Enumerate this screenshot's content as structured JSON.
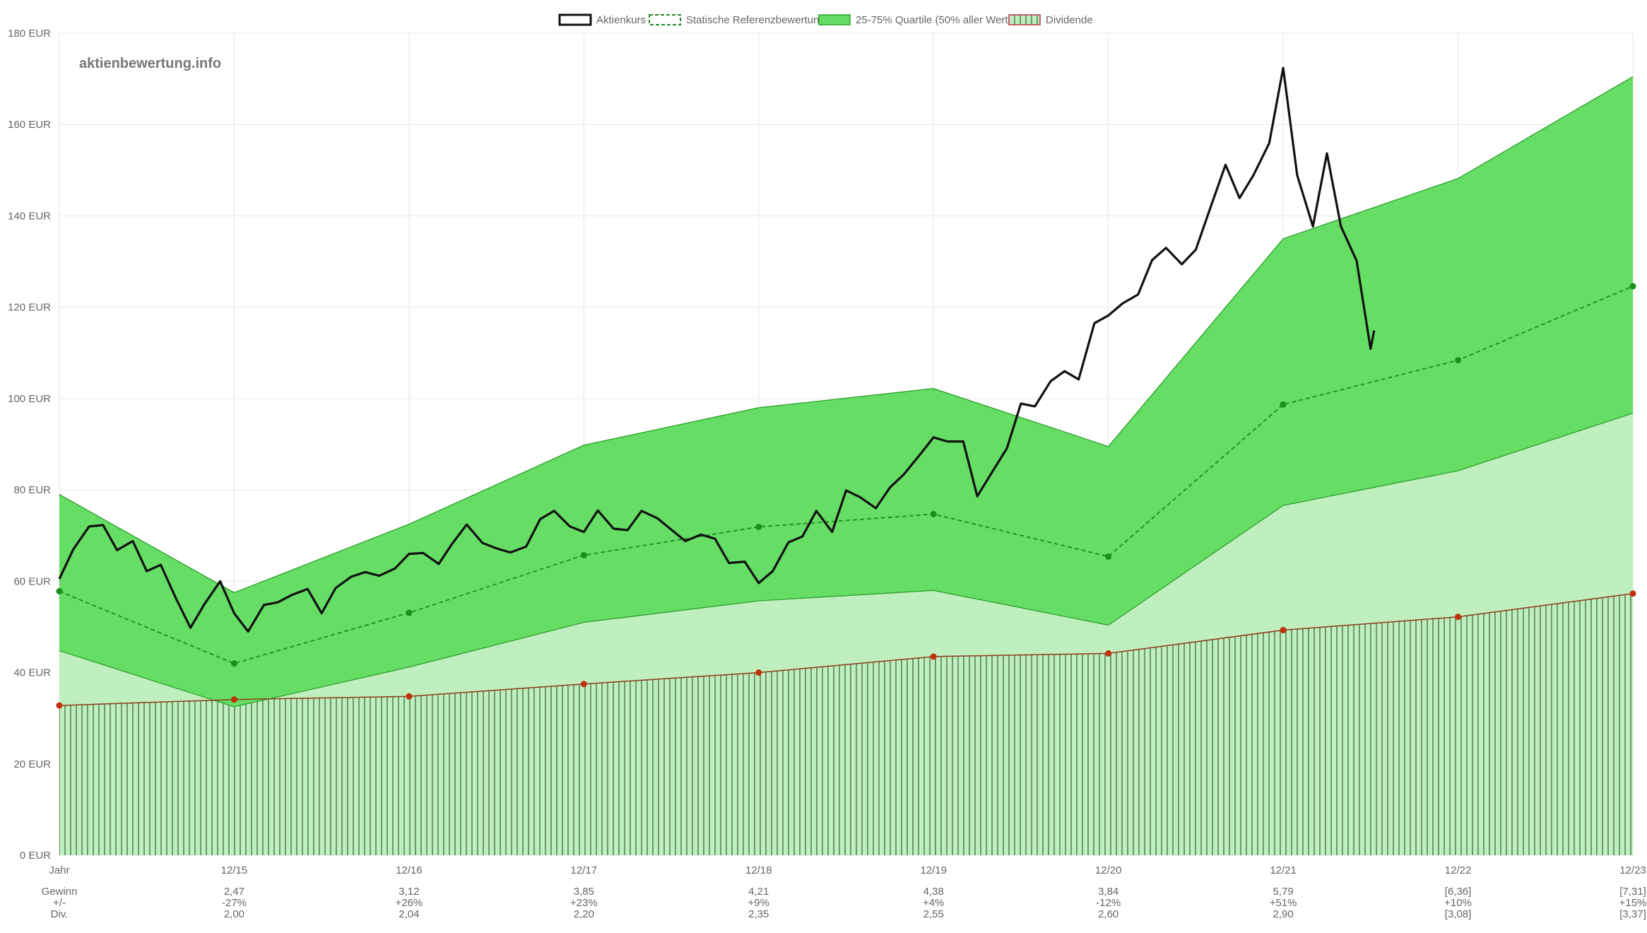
{
  "watermark": "aktienbewertung.info",
  "legend": {
    "price": "Aktienkurs",
    "reference": "Statische Referenzbewertung",
    "quartile": "25-75% Quartile (50% aller Werte)",
    "dividend": "Dividende"
  },
  "colors": {
    "price": "#111111",
    "reference": "#1e8a1e",
    "reference_point": "#1a8f1a",
    "quartile_fill": "#66de66",
    "quartile_stroke": "#2ca02c",
    "lower_fill": "#c0efbf",
    "dividend_stroke": "#8b3a1a",
    "dividend_point": "#c0300a",
    "dividend_hatch": "#3f6b3f",
    "grid": "#e6e6e6"
  },
  "table": {
    "header": "Jahr",
    "row_labels": [
      "Gewinn",
      "+/-",
      "Div."
    ],
    "columns": [
      {
        "year": "12/15",
        "gewinn": "2,47",
        "change": "-27%",
        "div": "2,00"
      },
      {
        "year": "12/16",
        "gewinn": "3,12",
        "change": "+26%",
        "div": "2,04"
      },
      {
        "year": "12/17",
        "gewinn": "3,85",
        "change": "+23%",
        "div": "2,20"
      },
      {
        "year": "12/18",
        "gewinn": "4,21",
        "change": "+9%",
        "div": "2,35"
      },
      {
        "year": "12/19",
        "gewinn": "4,38",
        "change": "+4%",
        "div": "2,55"
      },
      {
        "year": "12/20",
        "gewinn": "3,84",
        "change": "-12%",
        "div": "2,60"
      },
      {
        "year": "12/21",
        "gewinn": "5,79",
        "change": "+51%",
        "div": "2,90"
      },
      {
        "year": "12/22",
        "gewinn": "[6,36]",
        "change": "+10%",
        "div": "[3,08]"
      },
      {
        "year": "12/23",
        "gewinn": "[7,31]",
        "change": "+15%",
        "div": "[3,37]"
      }
    ]
  },
  "chart_data": {
    "type": "line",
    "title": "",
    "xlabel": "",
    "ylabel": "",
    "y_unit": "EUR",
    "ylim": [
      0,
      180
    ],
    "yticks": [
      0,
      20,
      40,
      60,
      80,
      100,
      120,
      140,
      160,
      180
    ],
    "xlim": [
      2014.0,
      2023.0
    ],
    "x_ticks": [
      2014,
      2015,
      2016,
      2017,
      2018,
      2019,
      2020,
      2021,
      2022,
      2023
    ],
    "x_tick_labels": [
      "Jahr",
      "12/15",
      "12/16",
      "12/17",
      "12/18",
      "12/19",
      "12/20",
      "12/21",
      "12/22",
      "12/23"
    ],
    "grid": true,
    "legend_position": "top-center",
    "series": [
      {
        "name": "Aktienkurs",
        "x": [
          2014.0,
          2014.08,
          2014.17,
          2014.25,
          2014.33,
          2014.42,
          2014.5,
          2014.58,
          2014.67,
          2014.75,
          2014.83,
          2014.92,
          2015.0,
          2015.08,
          2015.17,
          2015.25,
          2015.33,
          2015.42,
          2015.5,
          2015.58,
          2015.67,
          2015.75,
          2015.83,
          2015.92,
          2016.0,
          2016.08,
          2016.17,
          2016.25,
          2016.33,
          2016.42,
          2016.5,
          2016.58,
          2016.67,
          2016.75,
          2016.83,
          2016.92,
          2017.0,
          2017.08,
          2017.17,
          2017.25,
          2017.33,
          2017.42,
          2017.5,
          2017.58,
          2017.67,
          2017.75,
          2017.83,
          2017.92,
          2018.0,
          2018.08,
          2018.17,
          2018.25,
          2018.33,
          2018.42,
          2018.5,
          2018.58,
          2018.67,
          2018.75,
          2018.83,
          2018.92,
          2019.0,
          2019.08,
          2019.17,
          2019.25,
          2019.33,
          2019.42,
          2019.5,
          2019.58,
          2019.67,
          2019.75,
          2019.83,
          2019.92,
          2020.0,
          2020.08,
          2020.17,
          2020.25,
          2020.33,
          2020.42,
          2020.5,
          2020.58,
          2020.67,
          2020.75,
          2020.83,
          2020.92,
          2021.0,
          2021.08,
          2021.17,
          2021.25,
          2021.33,
          2021.42,
          2021.5,
          2021.52
        ],
        "y": [
          60.5,
          67.0,
          72.0,
          72.3,
          66.8,
          68.8,
          62.2,
          63.6,
          56.0,
          49.8,
          55.0,
          60.0,
          53.0,
          49.0,
          54.8,
          55.4,
          57.0,
          58.3,
          53.0,
          58.5,
          61.0,
          62.0,
          61.2,
          62.8,
          66.0,
          66.2,
          63.8,
          68.4,
          72.4,
          68.4,
          67.2,
          66.3,
          67.6,
          73.6,
          75.4,
          72.0,
          70.8,
          75.5,
          71.5,
          71.2,
          75.4,
          73.8,
          71.3,
          68.8,
          70.2,
          69.3,
          64.0,
          64.3,
          59.6,
          62.2,
          68.5,
          69.8,
          75.4,
          70.8,
          79.9,
          78.4,
          76.0,
          80.5,
          83.4,
          87.6,
          91.5,
          90.6,
          90.6,
          78.6,
          83.6,
          89.1,
          98.9,
          98.3,
          103.8,
          106.0,
          104.2,
          116.5,
          118.2,
          120.8,
          122.8,
          130.3,
          133.0,
          129.4,
          132.6,
          141.4,
          151.2,
          143.9,
          148.9,
          155.9,
          172.4,
          148.9,
          137.7,
          153.7,
          137.7,
          130.2,
          110.9,
          114.9
        ]
      },
      {
        "name": "Statische Referenzbewertung",
        "x": [
          2014,
          2015,
          2016,
          2017,
          2018,
          2019,
          2020,
          2021,
          2022,
          2023
        ],
        "y": [
          57.8,
          42.0,
          53.1,
          65.7,
          71.9,
          74.7,
          65.4,
          98.7,
          108.4,
          124.6
        ]
      },
      {
        "name": "25-75% Quartile (50% aller Werte) – 75%",
        "x": [
          2014,
          2015,
          2016,
          2017,
          2018,
          2019,
          2020,
          2021,
          2022,
          2023
        ],
        "y": [
          79.0,
          57.5,
          72.5,
          89.8,
          98.0,
          102.2,
          89.5,
          135.0,
          148.2,
          170.5
        ]
      },
      {
        "name": "25-75% Quartile (50% aller Werte) – 25%",
        "x": [
          2014,
          2015,
          2016,
          2017,
          2018,
          2019,
          2020,
          2021,
          2022,
          2023
        ],
        "y": [
          44.8,
          32.5,
          41.2,
          51.0,
          55.7,
          58.0,
          50.4,
          76.6,
          84.2,
          96.8
        ]
      },
      {
        "name": "Dividende",
        "x": [
          2014,
          2015,
          2016,
          2017,
          2018,
          2019,
          2020,
          2021,
          2022,
          2023
        ],
        "y": [
          32.8,
          34.1,
          34.8,
          37.5,
          40.0,
          43.5,
          44.2,
          49.3,
          52.2,
          57.3
        ]
      }
    ]
  }
}
